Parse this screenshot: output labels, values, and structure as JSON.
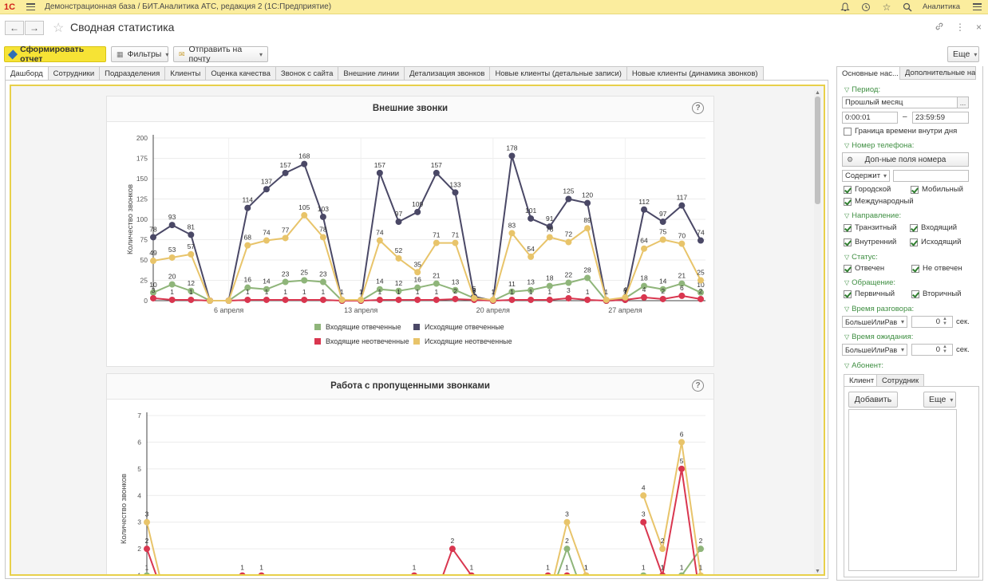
{
  "app": {
    "logo": "1С",
    "title": "Демонстрационная база / БИТ.Аналитика АТС, редакция 2  (1С:Предприятие)",
    "user": "Аналитика"
  },
  "page": {
    "title": "Сводная статистика"
  },
  "toolbar": {
    "run_label": "Сформировать отчет",
    "filters_label": "Фильтры",
    "mail_label": "Отправить на почту",
    "more_label": "Еще"
  },
  "tabs": [
    {
      "label": "Дашборд",
      "active": true
    },
    {
      "label": "Сотрудники"
    },
    {
      "label": "Подразделения"
    },
    {
      "label": "Клиенты"
    },
    {
      "label": "Оценка качества"
    },
    {
      "label": "Звонок с сайта"
    },
    {
      "label": "Внешние линии"
    },
    {
      "label": "Детализация звонков"
    },
    {
      "label": "Новые клиенты (детальные записи)"
    },
    {
      "label": "Новые клиенты (динамика звонков)"
    }
  ],
  "colors": {
    "inbound_answered": "#8fb57a",
    "outbound_answered": "#4a4866",
    "inbound_missed": "#d9364f",
    "outbound_missed": "#e8c46a"
  },
  "chart_data": [
    {
      "type": "line",
      "title": "Внешние звонки",
      "xlabel": "",
      "ylabel": "Количество звонков",
      "ylim": [
        0,
        200
      ],
      "yticks": [
        0,
        25,
        50,
        75,
        100,
        125,
        150,
        175,
        200
      ],
      "xtick_labels": [
        "6 апреля",
        "13 апреля",
        "20 апреля",
        "27 апреля"
      ],
      "xtick_index": [
        4,
        11,
        18,
        25
      ],
      "legend_position": "bottom",
      "series": [
        {
          "name": "Входящие отвеченные",
          "color": "#8fb57a",
          "values": [
            10,
            20,
            12,
            0,
            0,
            16,
            14,
            23,
            25,
            23,
            0,
            0,
            14,
            12,
            16,
            21,
            13,
            3,
            0,
            11,
            13,
            18,
            22,
            28,
            0,
            3,
            18,
            14,
            21,
            10
          ]
        },
        {
          "name": "Исходящие отвеченные",
          "color": "#4a4866",
          "values": [
            78,
            93,
            81,
            0,
            0,
            114,
            137,
            157,
            168,
            103,
            0,
            0,
            157,
            97,
            109,
            157,
            133,
            5,
            0,
            178,
            101,
            91,
            125,
            120,
            0,
            1,
            112,
            97,
            117,
            74
          ]
        },
        {
          "name": "Входящие неотвеченные",
          "color": "#d9364f",
          "values": [
            3,
            1,
            1,
            0,
            0,
            1,
            1,
            1,
            1,
            1,
            0,
            0,
            1,
            1,
            1,
            1,
            2,
            1,
            0,
            1,
            1,
            1,
            3,
            1,
            0,
            1,
            4,
            2,
            6,
            2
          ]
        },
        {
          "name": "Исходящие неотвеченные",
          "color": "#e8c46a",
          "values": [
            49,
            53,
            57,
            0,
            0,
            68,
            74,
            77,
            105,
            78,
            1,
            1,
            74,
            52,
            35,
            71,
            71,
            3,
            1,
            83,
            54,
            78,
            72,
            89,
            1,
            4,
            64,
            75,
            70,
            25
          ]
        }
      ]
    },
    {
      "type": "line",
      "title": "Работа с пропущенными звонками",
      "xlabel": "",
      "ylabel": "Количество звонков",
      "ylim": [
        0,
        7
      ],
      "yticks": [
        1,
        2,
        3,
        4,
        5,
        6,
        7
      ],
      "series": [
        {
          "name": "",
          "color": "#8fb57a",
          "values": [
            1,
            0,
            null,
            null,
            null,
            null,
            null,
            null,
            null,
            null,
            null,
            null,
            null,
            null,
            null,
            null,
            null,
            null,
            null,
            null,
            null,
            0,
            2,
            0,
            null,
            null,
            1,
            1,
            1,
            2
          ]
        },
        {
          "name": "",
          "color": "#d9364f",
          "values": [
            2,
            0,
            null,
            null,
            0,
            1,
            1,
            0,
            null,
            null,
            null,
            null,
            null,
            0,
            1,
            0,
            2,
            1,
            0,
            null,
            0,
            1,
            1,
            1,
            0,
            null,
            3,
            1,
            5,
            0
          ]
        },
        {
          "name": "",
          "color": "#e8c46a",
          "values": [
            3,
            0,
            null,
            null,
            null,
            null,
            null,
            null,
            null,
            null,
            null,
            null,
            null,
            null,
            null,
            null,
            null,
            null,
            null,
            null,
            null,
            0,
            3,
            1,
            0,
            null,
            4,
            2,
            6,
            1
          ]
        }
      ]
    }
  ],
  "right": {
    "tab_main": "Основные нас...",
    "tab_extra": "Дополнительные на...",
    "period_label": "Период:",
    "period_value": "Прошлый месяц",
    "time_from": "0:00:01",
    "time_dash": "–",
    "time_to": "23:59:59",
    "time_inside_label": "Граница времени внутри дня",
    "phone_label": "Номер телефона:",
    "phone_fields_btn": "Доп-ные поля номера",
    "phone_mode": "Содержит",
    "cb_city": "Городской",
    "cb_mobile": "Мобильный",
    "cb_intl": "Международный",
    "direction_label": "Направление:",
    "cb_transit": "Транзитный",
    "cb_incoming": "Входящий",
    "cb_internal": "Внутренний",
    "cb_outgoing": "Исходящий",
    "status_label": "Статус:",
    "cb_answered": "Отвечен",
    "cb_not_answered": "Не отвечен",
    "appeal_label": "Обращение:",
    "cb_primary": "Первичный",
    "cb_secondary": "Вторичный",
    "talk_label": "Время разговора:",
    "talk_op": "БольшеИлиРав",
    "talk_value": "0",
    "talk_unit": "сек.",
    "wait_label": "Время ожидания:",
    "wait_op": "БольшеИлиРав",
    "wait_value": "0",
    "wait_unit": "сек.",
    "subscriber_label": "Абонент:",
    "tab_client": "Клиент",
    "tab_employee": "Сотрудник",
    "add_btn": "Добавить",
    "more_btn": "Еще"
  }
}
